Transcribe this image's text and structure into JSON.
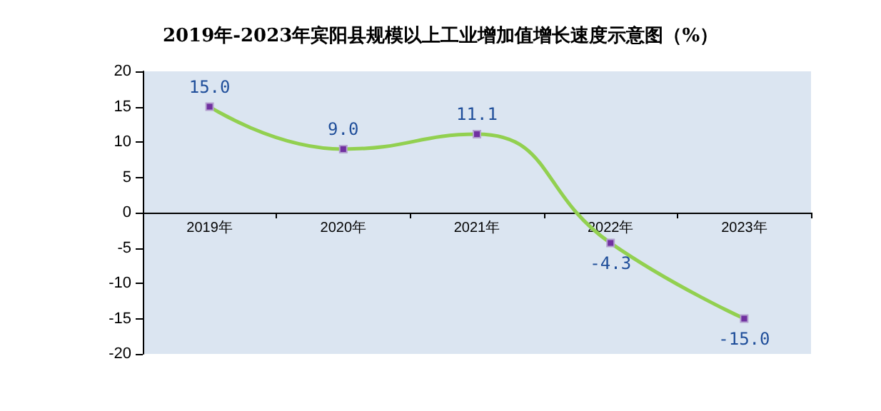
{
  "chart_data": {
    "type": "line",
    "title": "2019年-2023年宾阳县规模以上工业增加值增长速度示意图（%）",
    "categories": [
      "2019年",
      "2020年",
      "2021年",
      "2022年",
      "2023年"
    ],
    "series": [
      {
        "color": "#92d050",
        "values": [
          15.0,
          9.0,
          11.1,
          -4.3,
          -15.0
        ],
        "value_labels": [
          "15.0",
          "9.0",
          "11.1",
          "-4.3",
          "-15.0"
        ]
      }
    ],
    "ylim": [
      -20,
      20
    ],
    "yticks": [
      -20,
      -15,
      -10,
      -5,
      0,
      5,
      10,
      15,
      20
    ],
    "marker": "square",
    "line_style": "solid"
  }
}
